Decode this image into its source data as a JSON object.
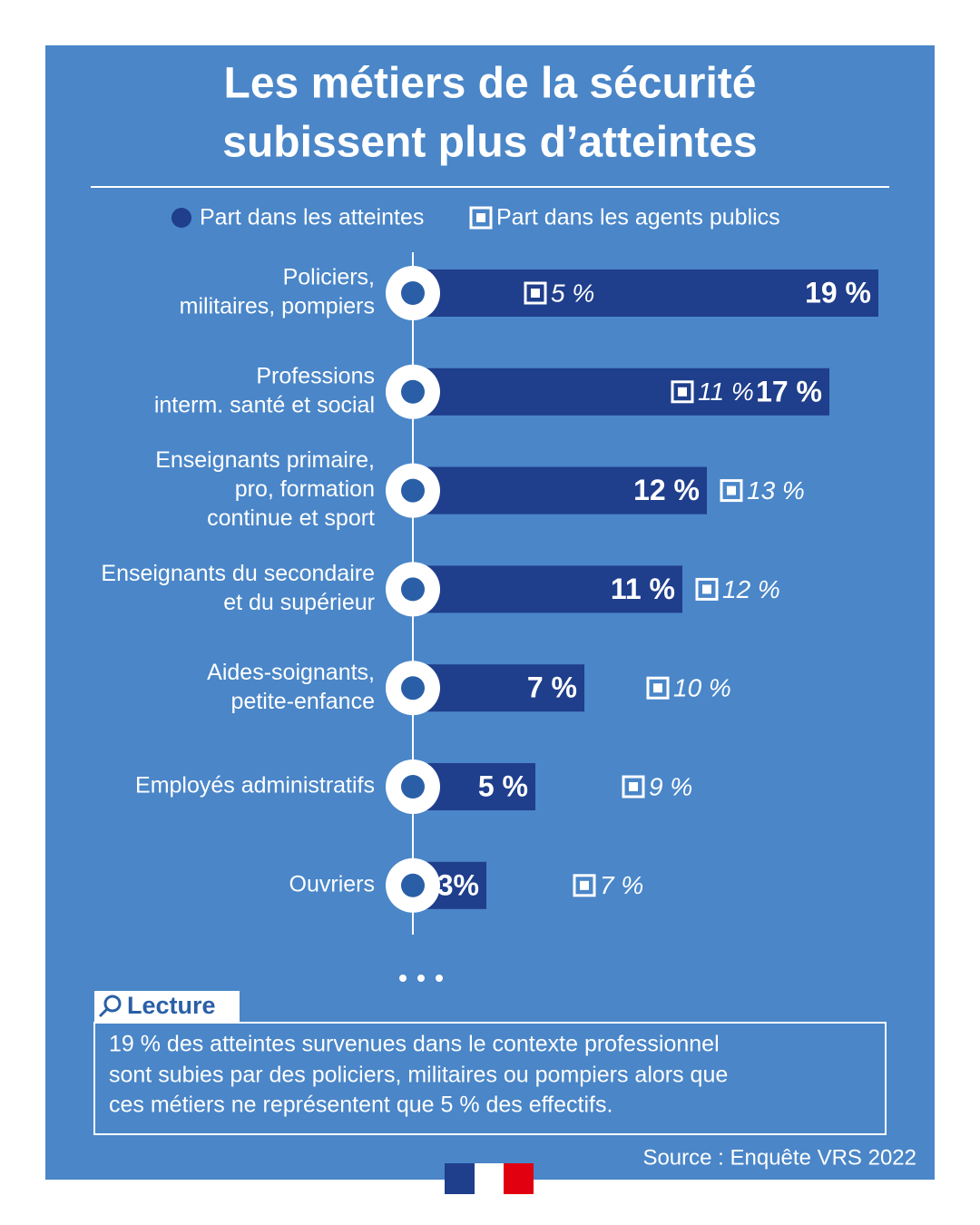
{
  "chart_data": {
    "type": "bar",
    "title": [
      "Les métiers de la sécurité",
      "subissent plus d’atteintes"
    ],
    "categories": [
      [
        "Policiers,",
        "militaires, pompiers"
      ],
      [
        "Professions",
        "interm. santé et social"
      ],
      [
        "Enseignants primaire,",
        "pro, formation",
        "continue et sport"
      ],
      [
        "Enseignants du secondaire",
        "et du supérieur"
      ],
      [
        "Aides-soignants,",
        "petite-enfance"
      ],
      [
        "Employés administratifs"
      ],
      [
        "Ouvriers"
      ]
    ],
    "series": [
      {
        "name": "Part dans les atteintes",
        "color": "#1f3e8c",
        "values": [
          19,
          17,
          12,
          11,
          7,
          5,
          3
        ],
        "value_labels": [
          "19 %",
          "17 %",
          "12 %",
          "11 %",
          "7 %",
          "5 %",
          "3%"
        ]
      },
      {
        "name": "Part dans les agents publics",
        "color": "#ffffff",
        "values": [
          5,
          11,
          13,
          12,
          10,
          9,
          7
        ],
        "value_labels": [
          "5 %",
          "11 %",
          "13 %",
          "12 %",
          "10 %",
          "9 %",
          "7 %"
        ]
      }
    ],
    "reading_title": "Lecture",
    "reading_text": [
      "19 % des atteintes survenues dans le contexte professionnel",
      "sont subies par des policiers, militaires ou pompiers alors que",
      "ces métiers ne représentent que 5 % des effectifs."
    ],
    "source": "Source : Enquête VRS 2022"
  }
}
